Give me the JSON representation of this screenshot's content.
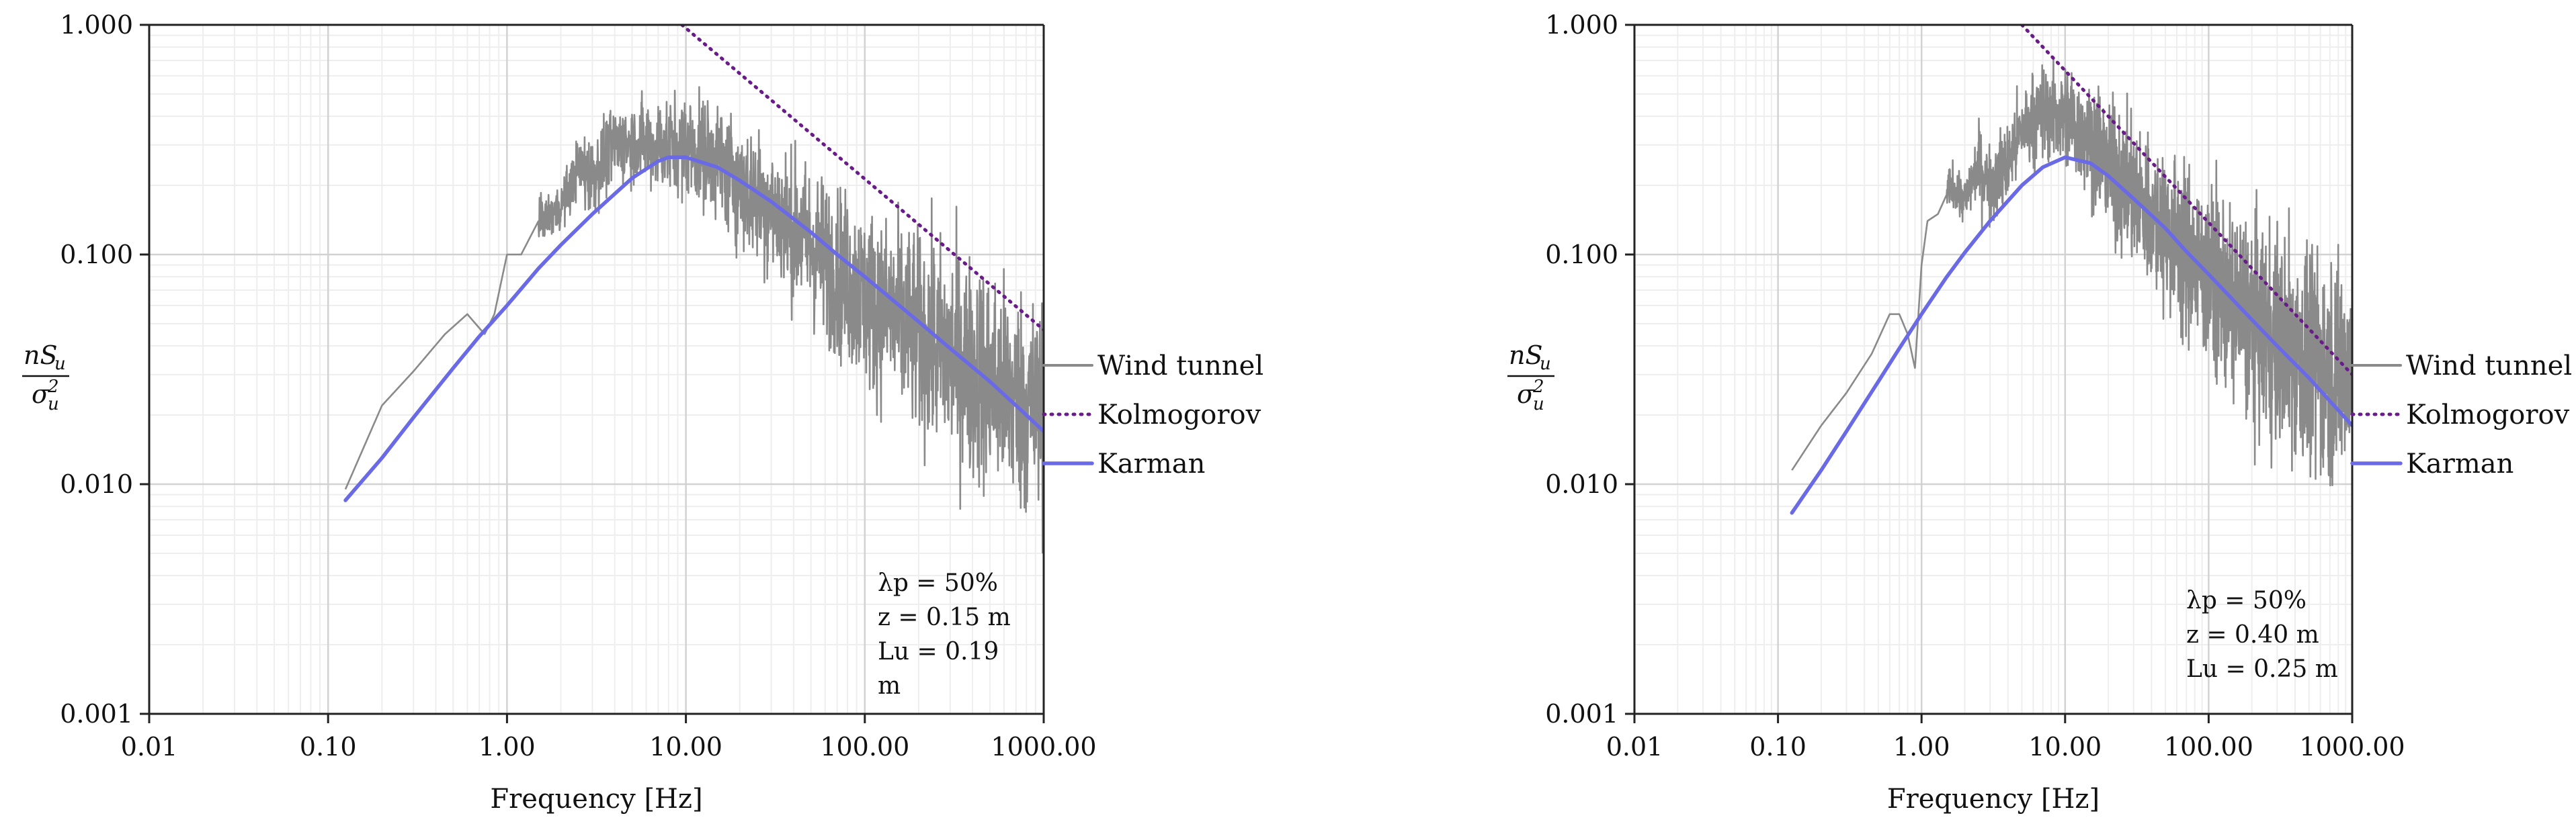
{
  "chart_data": [
    {
      "type": "line",
      "title": "",
      "xlabel": "Frequency [Hz]",
      "ylabel_num_main": "nS",
      "ylabel_num_sub": "u",
      "ylabel_den_main": "σ",
      "ylabel_den_sub": "u",
      "ylabel_den_sup": "2",
      "xscale": "log",
      "yscale": "log",
      "xlim": [
        0.01,
        1000
      ],
      "ylim": [
        0.001,
        1
      ],
      "xticks": [
        0.01,
        0.1,
        1,
        10,
        100,
        1000
      ],
      "xtick_labels": [
        "0.01",
        "0.10",
        "1.00",
        "10.00",
        "100.00",
        "1000.00"
      ],
      "yticks": [
        0.001,
        0.01,
        0.1,
        1
      ],
      "ytick_labels": [
        "0.001",
        "0.010",
        "0.100",
        "1.000"
      ],
      "grid": true,
      "legend_position": "right",
      "series": [
        {
          "name": "Wind tunnel",
          "color": "#8a8a8a",
          "style": "solid",
          "x": [
            0.125,
            0.2,
            0.3,
            0.45,
            0.6,
            0.75,
            0.85,
            1.0,
            1.2,
            1.5,
            2.0,
            2.5,
            3.0,
            4.0,
            5.0,
            7.0,
            10.0,
            15.0,
            20.0,
            30.0,
            50.0,
            100.0,
            200.0,
            500.0,
            1000.0
          ],
          "values": [
            0.0095,
            0.022,
            0.031,
            0.045,
            0.055,
            0.045,
            0.055,
            0.1,
            0.1,
            0.14,
            0.16,
            0.24,
            0.22,
            0.3,
            0.31,
            0.3,
            0.3,
            0.26,
            0.2,
            0.16,
            0.11,
            0.065,
            0.045,
            0.028,
            0.02
          ]
        },
        {
          "name": "Kolmogorov",
          "color": "#6a1b8a",
          "style": "dotted",
          "x": [
            9.5,
            1000.0
          ],
          "values": [
            1.0,
            0.047
          ]
        },
        {
          "name": "Karman",
          "color": "#6a6ae6",
          "style": "solid",
          "x": [
            0.125,
            0.2,
            0.3,
            0.5,
            0.7,
            1.0,
            1.5,
            2.0,
            3.0,
            5.0,
            7.0,
            8.0,
            10.0,
            15.0,
            20.0,
            30.0,
            50.0,
            70.0,
            100.0,
            200.0,
            300.0,
            500.0,
            700.0,
            1000.0
          ],
          "values": [
            0.0085,
            0.013,
            0.0195,
            0.032,
            0.044,
            0.06,
            0.087,
            0.11,
            0.15,
            0.215,
            0.255,
            0.265,
            0.265,
            0.24,
            0.21,
            0.17,
            0.125,
            0.1,
            0.08,
            0.051,
            0.039,
            0.028,
            0.022,
            0.017
          ]
        }
      ],
      "annotation": [
        "λp = 50%",
        "z = 0.15 m",
        "Lu = 0.19",
        "m"
      ]
    },
    {
      "type": "line",
      "title": "",
      "xlabel": "Frequency [Hz]",
      "ylabel_num_main": "nS",
      "ylabel_num_sub": "u",
      "ylabel_den_main": "σ",
      "ylabel_den_sub": "u",
      "ylabel_den_sup": "2",
      "xscale": "log",
      "yscale": "log",
      "xlim": [
        0.01,
        1000
      ],
      "ylim": [
        0.001,
        1
      ],
      "xticks": [
        0.01,
        0.1,
        1,
        10,
        100,
        1000
      ],
      "xtick_labels": [
        "0.01",
        "0.10",
        "1.00",
        "10.00",
        "100.00",
        "1000.00"
      ],
      "yticks": [
        0.001,
        0.01,
        0.1,
        1
      ],
      "ytick_labels": [
        "0.001",
        "0.010",
        "0.100",
        "1.000"
      ],
      "grid": true,
      "legend_position": "right",
      "series": [
        {
          "name": "Wind tunnel",
          "color": "#8a8a8a",
          "style": "solid",
          "x": [
            0.125,
            0.2,
            0.3,
            0.45,
            0.6,
            0.7,
            0.8,
            0.9,
            1.0,
            1.1,
            1.3,
            1.6,
            2.0,
            2.5,
            3.0,
            4.0,
            5.0,
            7.0,
            10.0,
            15.0,
            20.0,
            30.0,
            50.0,
            100.0,
            200.0,
            500.0,
            1000.0
          ],
          "values": [
            0.0115,
            0.018,
            0.025,
            0.037,
            0.055,
            0.055,
            0.045,
            0.032,
            0.09,
            0.14,
            0.15,
            0.2,
            0.17,
            0.25,
            0.2,
            0.25,
            0.35,
            0.42,
            0.4,
            0.32,
            0.24,
            0.18,
            0.13,
            0.08,
            0.05,
            0.035,
            0.03
          ]
        },
        {
          "name": "Kolmogorov",
          "color": "#6a1b8a",
          "style": "dotted",
          "x": [
            5.0,
            1000.0
          ],
          "values": [
            1.0,
            0.03
          ]
        },
        {
          "name": "Karman",
          "color": "#6a6ae6",
          "style": "solid",
          "x": [
            0.125,
            0.2,
            0.3,
            0.5,
            0.7,
            1.0,
            1.5,
            2.0,
            3.0,
            5.0,
            7.0,
            10.0,
            15.0,
            20.0,
            30.0,
            50.0,
            70.0,
            100.0,
            200.0,
            300.0,
            500.0,
            700.0,
            1000.0
          ],
          "values": [
            0.0075,
            0.0115,
            0.017,
            0.028,
            0.039,
            0.055,
            0.08,
            0.102,
            0.14,
            0.2,
            0.24,
            0.265,
            0.25,
            0.22,
            0.175,
            0.13,
            0.103,
            0.082,
            0.052,
            0.04,
            0.029,
            0.023,
            0.018
          ]
        }
      ],
      "annotation": [
        "λp = 50%",
        "z = 0.40 m",
        "Lu = 0.25 m"
      ]
    }
  ]
}
